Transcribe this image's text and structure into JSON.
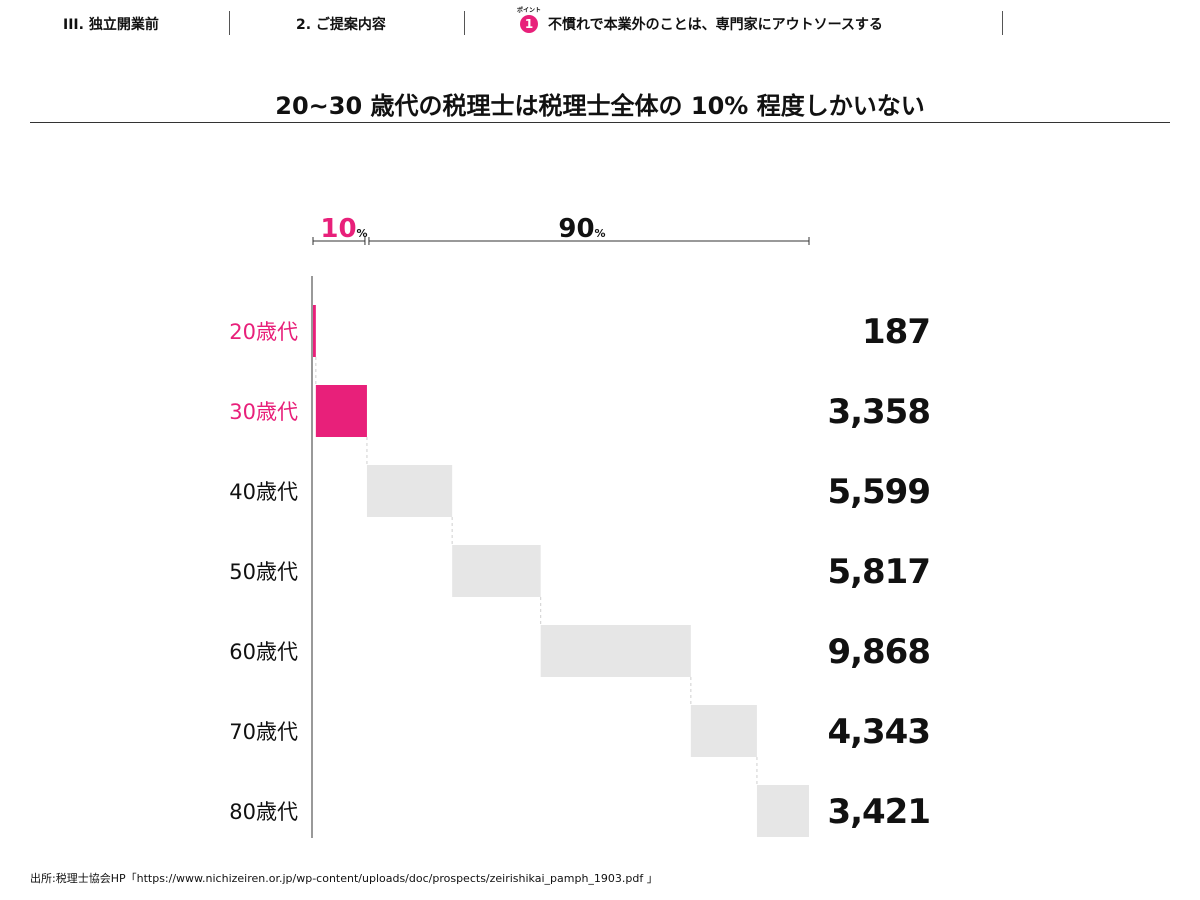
{
  "header": {
    "breadcrumbs": [
      {
        "label": "III. 独立開業前"
      },
      {
        "label": "2. ご提案内容"
      },
      {
        "label": "不慣れで本業外のことは、専門家にアウトソースする"
      }
    ],
    "point_caption": "ポイント",
    "point_number": "1"
  },
  "title": "20~30 歳代の税理士は税理士全体の 10% 程度しかいない",
  "colors": {
    "accent": "#e8207a",
    "muted_bar": "#e6e6e6",
    "text": "#111111"
  },
  "chart_data": {
    "type": "bar",
    "style": "waterfall-horizontal",
    "categories": [
      "20歳代",
      "30歳代",
      "40歳代",
      "50歳代",
      "60歳代",
      "70歳代",
      "80歳代"
    ],
    "values": [
      187,
      3358,
      5599,
      5817,
      9868,
      4343,
      3421
    ],
    "value_labels": [
      "187",
      "3,358",
      "5,599",
      "5,817",
      "9,868",
      "4,343",
      "3,421"
    ],
    "highlighted": [
      true,
      true,
      false,
      false,
      false,
      false,
      false
    ],
    "brackets": [
      {
        "value": "10",
        "unit": "%",
        "highlight": true
      },
      {
        "value": "90",
        "unit": "%",
        "highlight": false
      }
    ]
  },
  "source": "出所:税理士協会HP「https://www.nichizeiren.or.jp/wp-content/uploads/doc/prospects/zeirishikai_pamph_1903.pdf 」"
}
